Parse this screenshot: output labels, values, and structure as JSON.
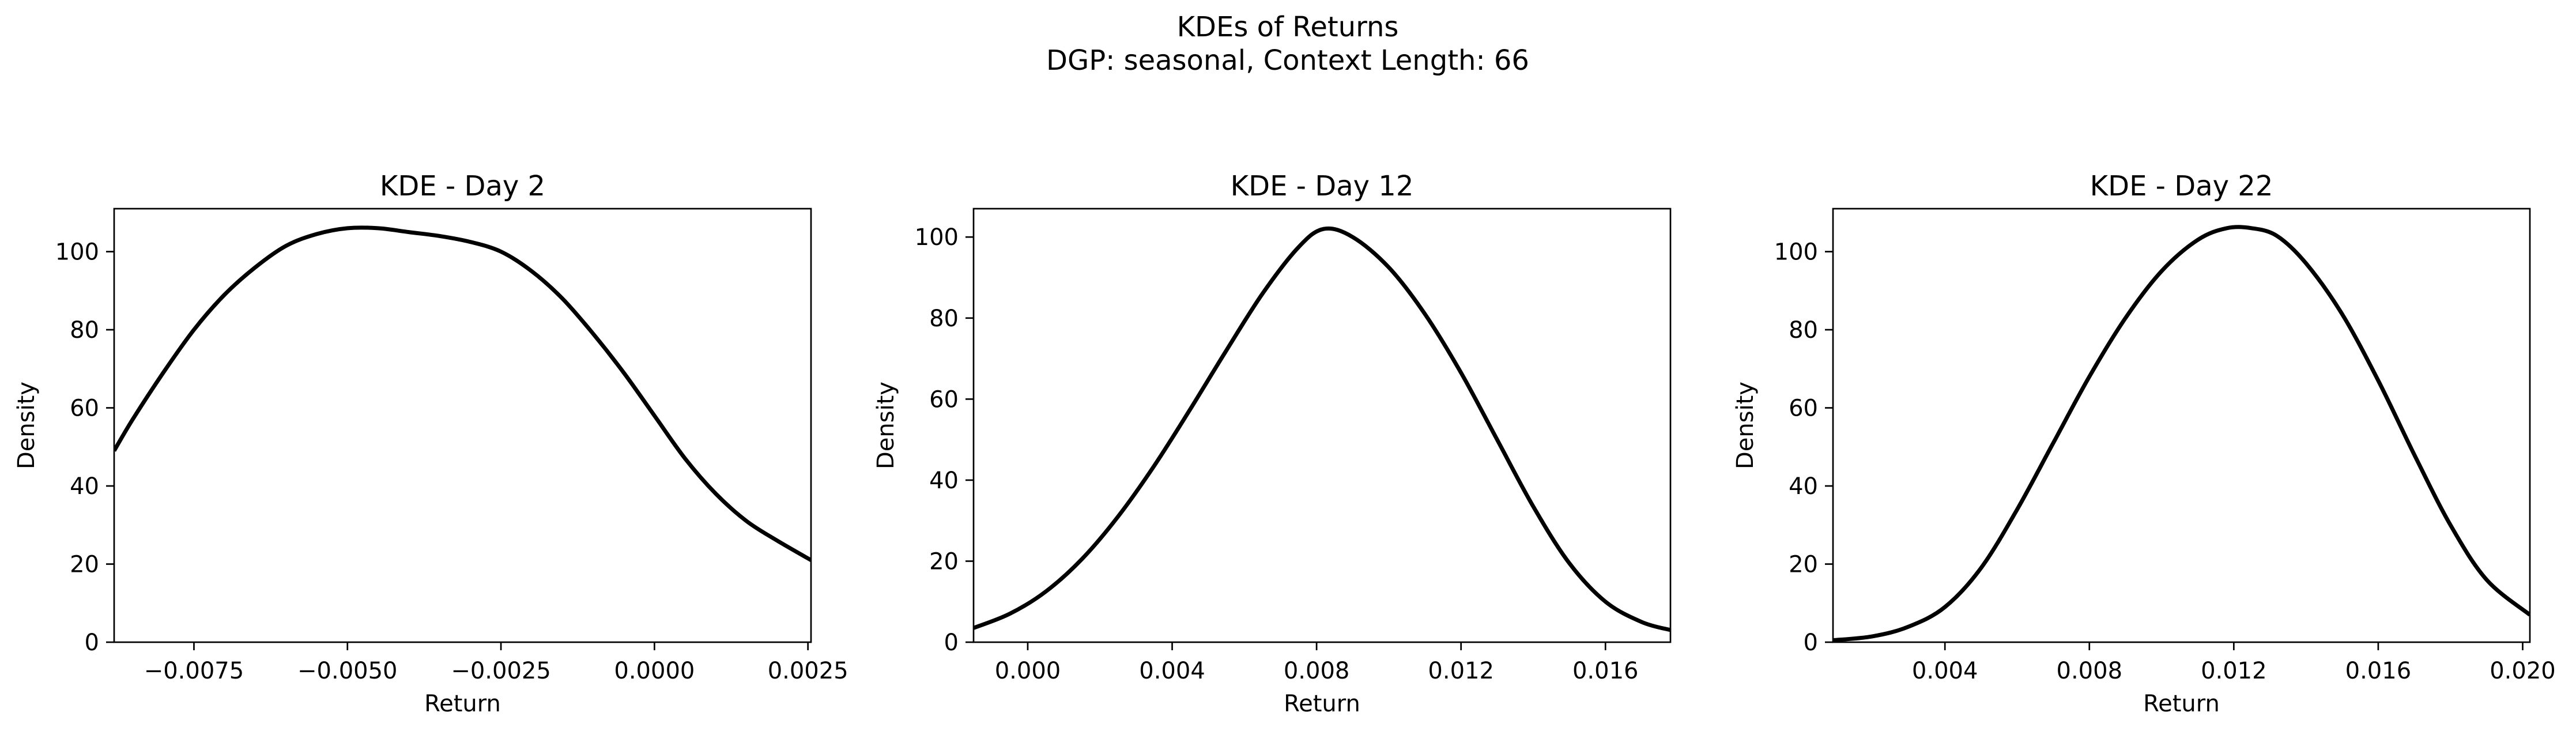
{
  "figure": {
    "title_line1": "KDEs of Returns",
    "title_line2": "DGP: seasonal, Context Length: 66"
  },
  "chart_data": [
    {
      "type": "line",
      "title": "KDE - Day 2",
      "xlabel": "Return",
      "ylabel": "Density",
      "xlim": [
        -0.0088,
        0.00255
      ],
      "ylim": [
        0,
        111
      ],
      "xticks": [
        -0.0075,
        -0.005,
        -0.0025,
        0.0,
        0.0025
      ],
      "xtick_labels": [
        "−0.0075",
        "−0.0050",
        "−0.0025",
        "0.0000",
        "0.0025"
      ],
      "yticks": [
        0,
        20,
        40,
        60,
        80,
        100
      ],
      "ytick_labels": [
        "0",
        "20",
        "40",
        "60",
        "80",
        "100"
      ],
      "grid": false,
      "line_color": "#000000",
      "series": [
        {
          "x": [
            -0.0088,
            -0.0085,
            -0.008,
            -0.0075,
            -0.007,
            -0.0065,
            -0.006,
            -0.0055,
            -0.005,
            -0.0045,
            -0.004,
            -0.0035,
            -0.003,
            -0.0025,
            -0.002,
            -0.0015,
            -0.001,
            -0.0005,
            0.0,
            0.0005,
            0.001,
            0.0015,
            0.002,
            0.00255
          ],
          "y": [
            49,
            57,
            69,
            80,
            89,
            96,
            101.5,
            104.5,
            106,
            106,
            105,
            104,
            102.5,
            100,
            95,
            88,
            79,
            69,
            58,
            47,
            38,
            31,
            26,
            21
          ]
        }
      ]
    },
    {
      "type": "line",
      "title": "KDE - Day 12",
      "xlabel": "Return",
      "ylabel": "Density",
      "xlim": [
        -0.0015,
        0.0178
      ],
      "ylim": [
        0,
        107
      ],
      "xticks": [
        0.0,
        0.004,
        0.008,
        0.012,
        0.016
      ],
      "xtick_labels": [
        "0.000",
        "0.004",
        "0.008",
        "0.012",
        "0.016"
      ],
      "yticks": [
        0,
        20,
        40,
        60,
        80,
        100
      ],
      "ytick_labels": [
        "0",
        "20",
        "40",
        "60",
        "80",
        "100"
      ],
      "grid": false,
      "line_color": "#000000",
      "series": [
        {
          "x": [
            -0.0015,
            -0.0005,
            0.0005,
            0.0015,
            0.0025,
            0.0035,
            0.0045,
            0.0055,
            0.0065,
            0.0075,
            0.0082,
            0.009,
            0.01,
            0.011,
            0.012,
            0.013,
            0.014,
            0.015,
            0.016,
            0.017,
            0.0178
          ],
          "y": [
            3.5,
            7,
            12.5,
            20.5,
            31,
            43.5,
            57.5,
            72,
            86,
            97.5,
            102,
            100,
            92.5,
            81,
            66.5,
            50,
            33.5,
            19.5,
            10,
            5,
            3
          ]
        }
      ]
    },
    {
      "type": "line",
      "title": "KDE - Day 22",
      "xlabel": "Return",
      "ylabel": "Density",
      "xlim": [
        0.0009,
        0.0202
      ],
      "ylim": [
        0,
        111
      ],
      "xticks": [
        0.004,
        0.008,
        0.012,
        0.016,
        0.02
      ],
      "xtick_labels": [
        "0.004",
        "0.008",
        "0.012",
        "0.016",
        "0.020"
      ],
      "yticks": [
        0,
        20,
        40,
        60,
        80,
        100
      ],
      "ytick_labels": [
        "0",
        "20",
        "40",
        "60",
        "80",
        "100"
      ],
      "grid": false,
      "line_color": "#000000",
      "series": [
        {
          "x": [
            0.0009,
            0.002,
            0.003,
            0.004,
            0.005,
            0.006,
            0.007,
            0.008,
            0.009,
            0.01,
            0.011,
            0.0118,
            0.0125,
            0.0132,
            0.014,
            0.015,
            0.016,
            0.017,
            0.018,
            0.019,
            0.0202
          ],
          "y": [
            0.5,
            1.5,
            4,
            9,
            19,
            34,
            51,
            68,
            83,
            95,
            103,
            106,
            106,
            104,
            97,
            84,
            67,
            48,
            30,
            16,
            7
          ]
        }
      ]
    }
  ]
}
